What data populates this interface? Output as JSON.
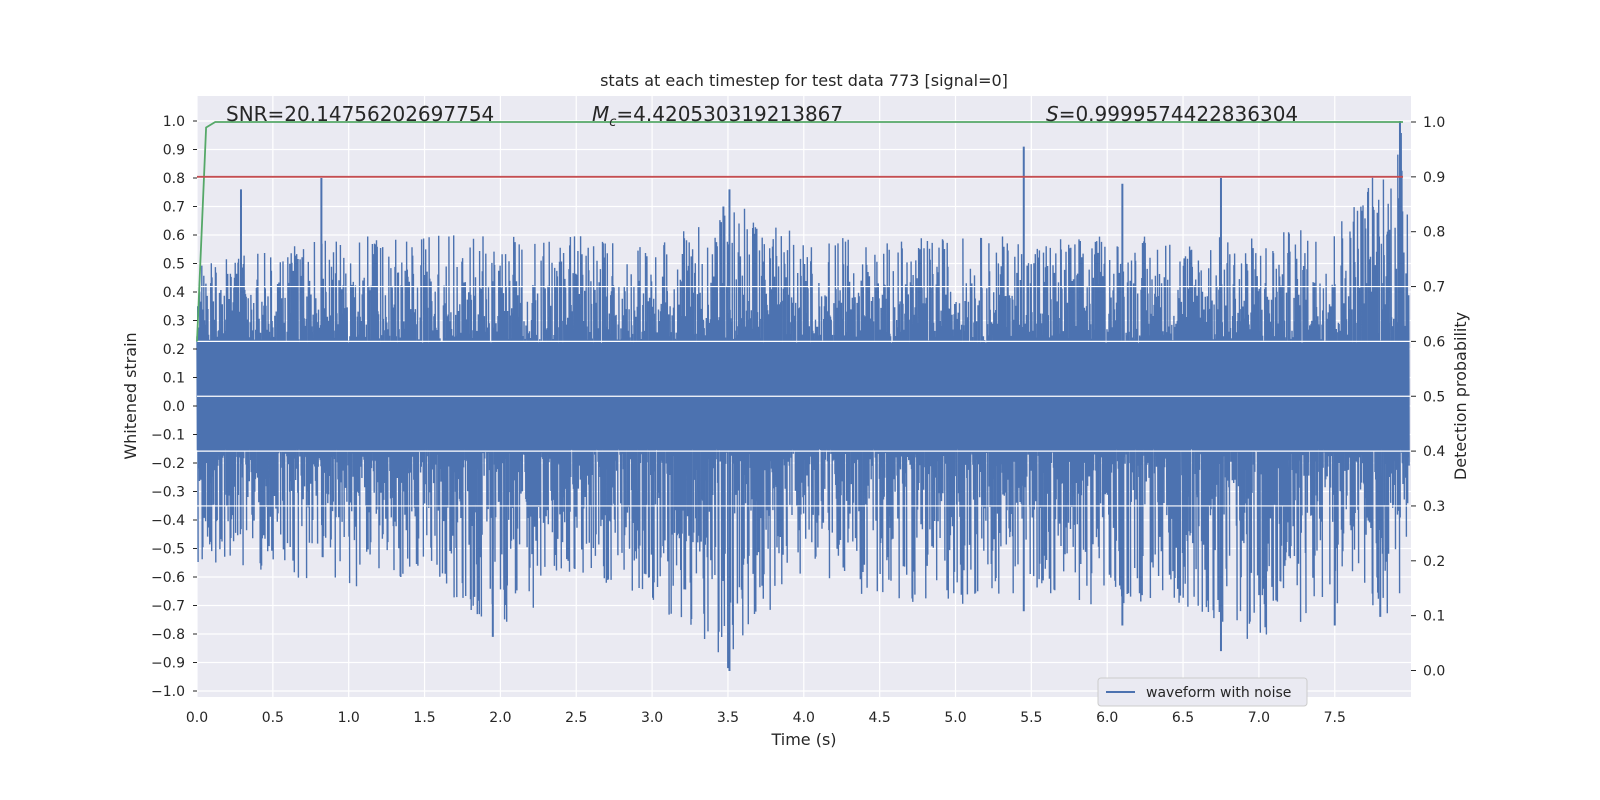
{
  "chart_data": {
    "type": "line",
    "title": "stats at each timestep for test data 773 [signal=0]",
    "xlabel": "Time (s)",
    "ylabel": "Whitened strain",
    "y2label": "Detection probability",
    "xlim": [
      0.0,
      8.0
    ],
    "ylim": [
      -1.05,
      1.05
    ],
    "y2lim": [
      -0.045,
      1.05
    ],
    "x_ticks": [
      "0.0",
      "0.5",
      "1.0",
      "1.5",
      "2.0",
      "2.5",
      "3.0",
      "3.5",
      "4.0",
      "4.5",
      "5.0",
      "5.5",
      "6.0",
      "6.5",
      "7.0",
      "7.5"
    ],
    "y_ticks": [
      "1.0",
      "0.9",
      "0.8",
      "0.7",
      "0.6",
      "0.5",
      "0.4",
      "0.3",
      "0.2",
      "0.1",
      "0.0",
      "−0.1",
      "−0.2",
      "−0.3",
      "−0.4",
      "−0.5",
      "−0.6",
      "−0.7",
      "−0.8",
      "−0.9",
      "−1.0"
    ],
    "y2_ticks": [
      "1.0",
      "0.9",
      "0.8",
      "0.7",
      "0.6",
      "0.5",
      "0.4",
      "0.3",
      "0.2",
      "0.1",
      "0.0"
    ],
    "grid": true,
    "legend_position": "lower-right",
    "annotations": {
      "snr_text": "SNR=20.14756202697754",
      "mc_symbol": "M",
      "mc_subscript": "c",
      "mc_value": "=4.420530319213867",
      "s_symbol": "S",
      "s_value": "=0.9999574422836304"
    },
    "series": [
      {
        "name": "waveform with noise",
        "axis": "left",
        "color": "#4c72b0",
        "envelope_upper": {
          "x": [
            0.0,
            0.5,
            1.0,
            1.5,
            2.0,
            2.5,
            3.0,
            3.5,
            4.0,
            4.5,
            5.0,
            5.5,
            6.0,
            6.5,
            7.0,
            7.5,
            7.95
          ],
          "y": [
            0.5,
            0.55,
            0.6,
            0.6,
            0.6,
            0.6,
            0.55,
            0.72,
            0.6,
            0.58,
            0.6,
            0.6,
            0.6,
            0.6,
            0.6,
            0.65,
            1.0
          ]
        },
        "envelope_lower": {
          "x": [
            0.0,
            0.5,
            1.0,
            1.5,
            2.0,
            2.5,
            3.0,
            3.5,
            4.0,
            4.5,
            5.0,
            5.5,
            6.0,
            6.5,
            7.0,
            7.5,
            7.95
          ],
          "y": [
            -0.55,
            -0.58,
            -0.65,
            -0.6,
            -0.8,
            -0.6,
            -0.68,
            -0.93,
            -0.6,
            -0.68,
            -0.7,
            -0.65,
            -0.72,
            -0.7,
            -0.85,
            -0.7,
            -0.75
          ]
        },
        "peaks": [
          {
            "x": 0.29,
            "y": 0.76
          },
          {
            "x": 0.82,
            "y": 0.8
          },
          {
            "x": 3.47,
            "y": 0.7
          },
          {
            "x": 3.51,
            "y": 0.76
          },
          {
            "x": 5.45,
            "y": 0.91
          },
          {
            "x": 6.1,
            "y": 0.78
          },
          {
            "x": 6.75,
            "y": 0.8
          },
          {
            "x": 7.93,
            "y": 1.0
          },
          {
            "x": 1.95,
            "y": -0.81
          },
          {
            "x": 3.51,
            "y": -0.93
          },
          {
            "x": 5.45,
            "y": -0.72
          },
          {
            "x": 6.1,
            "y": -0.77
          },
          {
            "x": 6.75,
            "y": -0.86
          },
          {
            "x": 7.8,
            "y": -0.74
          },
          {
            "x": 7.5,
            "y": -0.77
          }
        ]
      },
      {
        "name": "",
        "axis": "right",
        "color": "#55a868",
        "x": [
          0.0,
          0.06,
          0.12,
          0.5,
          1.0,
          2.0,
          3.0,
          4.0,
          5.0,
          6.0,
          7.0,
          7.95
        ],
        "y": [
          0.6,
          0.99,
          1.0,
          1.0,
          1.0,
          1.0,
          1.0,
          1.0,
          1.0,
          1.0,
          1.0,
          1.0
        ]
      },
      {
        "name": "",
        "axis": "right",
        "color": "#c44e52",
        "x": [
          0.0,
          7.95
        ],
        "y": [
          0.9,
          0.9
        ]
      }
    ]
  }
}
